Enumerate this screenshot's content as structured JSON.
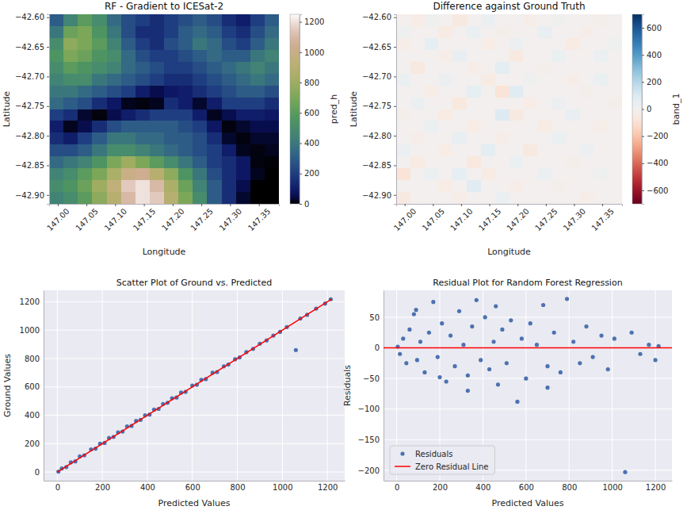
{
  "chart_data": [
    {
      "type": "heatmap",
      "title": "RF - Gradient to ICESat-2",
      "xlabel": "Longitude",
      "ylabel": "Latitude",
      "x": [
        146.9975,
        147.0225,
        147.0475,
        147.0725,
        147.0975,
        147.1225,
        147.1475,
        147.1725,
        147.1975,
        147.2225,
        147.2475,
        147.2725,
        147.2975,
        147.3225,
        147.3475,
        147.3725
      ],
      "y": [
        -42.605,
        -42.625,
        -42.645,
        -42.665,
        -42.685,
        -42.705,
        -42.725,
        -42.745,
        -42.765,
        -42.785,
        -42.805,
        -42.825,
        -42.845,
        -42.865,
        -42.885,
        -42.905
      ],
      "values": [
        [
          300,
          450,
          600,
          500,
          350,
          250,
          200,
          150,
          200,
          250,
          300,
          250,
          150,
          100,
          200,
          300
        ],
        [
          400,
          650,
          700,
          550,
          400,
          250,
          150,
          150,
          200,
          300,
          350,
          300,
          200,
          150,
          250,
          350
        ],
        [
          500,
          750,
          700,
          600,
          450,
          300,
          200,
          150,
          250,
          300,
          400,
          350,
          250,
          200,
          300,
          400
        ],
        [
          550,
          700,
          650,
          550,
          500,
          350,
          250,
          200,
          200,
          250,
          300,
          350,
          300,
          300,
          400,
          450
        ],
        [
          500,
          600,
          550,
          500,
          450,
          350,
          300,
          250,
          200,
          200,
          250,
          300,
          350,
          400,
          450,
          400
        ],
        [
          450,
          500,
          500,
          400,
          350,
          300,
          250,
          200,
          150,
          150,
          200,
          250,
          300,
          350,
          400,
          350
        ],
        [
          400,
          400,
          350,
          300,
          250,
          200,
          100,
          50,
          80,
          100,
          150,
          200,
          250,
          300,
          300,
          250
        ],
        [
          350,
          300,
          250,
          150,
          80,
          20,
          10,
          20,
          150,
          100,
          30,
          100,
          200,
          200,
          200,
          150
        ],
        [
          200,
          150,
          30,
          10,
          50,
          100,
          150,
          200,
          200,
          200,
          100,
          20,
          50,
          100,
          100,
          80
        ],
        [
          100,
          20,
          50,
          150,
          250,
          300,
          300,
          300,
          300,
          250,
          200,
          80,
          10,
          30,
          50,
          50
        ],
        [
          150,
          100,
          200,
          300,
          400,
          400,
          350,
          350,
          300,
          300,
          250,
          150,
          30,
          10,
          30,
          30
        ],
        [
          250,
          250,
          300,
          400,
          500,
          500,
          450,
          400,
          350,
          300,
          250,
          200,
          100,
          20,
          10,
          20
        ],
        [
          350,
          400,
          450,
          550,
          700,
          800,
          700,
          600,
          500,
          400,
          300,
          200,
          150,
          80,
          10,
          5
        ],
        [
          450,
          500,
          600,
          700,
          850,
          1000,
          1050,
          900,
          750,
          550,
          400,
          250,
          150,
          80,
          20,
          0
        ],
        [
          500,
          550,
          650,
          800,
          950,
          1150,
          1200,
          1100,
          850,
          650,
          450,
          300,
          150,
          50,
          0,
          0
        ],
        [
          450,
          500,
          600,
          750,
          900,
          1100,
          1200,
          1150,
          900,
          700,
          500,
          300,
          150,
          30,
          0,
          0
        ]
      ],
      "xlim": [
        146.985,
        147.385
      ],
      "ylim": [
        -42.915,
        -42.595
      ],
      "xticks": [
        {
          "value": 147,
          "label": "147.00"
        },
        {
          "value": 147.05,
          "label": "147.05"
        },
        {
          "value": 147.1,
          "label": "147.10"
        },
        {
          "value": 147.15,
          "label": "147.15"
        },
        {
          "value": 147.2,
          "label": "147.20"
        },
        {
          "value": 147.25,
          "label": "147.25"
        },
        {
          "value": 147.3,
          "label": "147.30"
        },
        {
          "value": 147.35,
          "label": "147.35"
        }
      ],
      "yticks": [
        {
          "value": -42.6,
          "label": "−42.60"
        },
        {
          "value": -42.65,
          "label": "−42.65"
        },
        {
          "value": -42.7,
          "label": "−42.70"
        },
        {
          "value": -42.75,
          "label": "−42.75"
        },
        {
          "value": -42.8,
          "label": "−42.80"
        },
        {
          "value": -42.85,
          "label": "−42.85"
        },
        {
          "value": -42.9,
          "label": "−42.90"
        }
      ],
      "grid": false,
      "colorbar": {
        "label": "pred_h",
        "range": [
          0,
          1250
        ],
        "ticks": [
          0,
          200,
          400,
          600,
          800,
          1000,
          1200
        ]
      }
    },
    {
      "type": "heatmap",
      "title": "Difference against Ground Truth",
      "xlabel": "Longitude",
      "ylabel": "Latitude",
      "x": [
        146.9975,
        147.0225,
        147.0475,
        147.0725,
        147.0975,
        147.1225,
        147.1475,
        147.1725,
        147.1975,
        147.2225,
        147.2475,
        147.2725,
        147.2975,
        147.3225,
        147.3475,
        147.3725
      ],
      "y": [
        -42.605,
        -42.625,
        -42.645,
        -42.665,
        -42.685,
        -42.705,
        -42.725,
        -42.745,
        -42.765,
        -42.785,
        -42.805,
        -42.825,
        -42.845,
        -42.865,
        -42.885,
        -42.905
      ],
      "values": [
        [
          0,
          -40,
          20,
          0,
          -60,
          0,
          30,
          0,
          0,
          -30,
          0,
          20,
          0,
          0,
          -20,
          0
        ],
        [
          20,
          0,
          0,
          -50,
          0,
          40,
          0,
          -20,
          0,
          0,
          50,
          0,
          0,
          -30,
          0,
          0
        ],
        [
          -30,
          0,
          60,
          0,
          0,
          0,
          -40,
          0,
          30,
          0,
          0,
          0,
          -50,
          0,
          0,
          20
        ],
        [
          0,
          0,
          0,
          -30,
          50,
          0,
          0,
          0,
          -60,
          0,
          0,
          40,
          0,
          0,
          30,
          0
        ],
        [
          0,
          -60,
          0,
          0,
          0,
          -30,
          0,
          70,
          0,
          0,
          -20,
          0,
          0,
          0,
          0,
          0
        ],
        [
          40,
          0,
          0,
          30,
          0,
          0,
          -50,
          0,
          0,
          20,
          0,
          0,
          -30,
          0,
          40,
          0
        ],
        [
          0,
          0,
          -40,
          0,
          0,
          60,
          0,
          -90,
          80,
          0,
          0,
          0,
          0,
          -20,
          0,
          0
        ],
        [
          0,
          30,
          0,
          0,
          -70,
          0,
          0,
          0,
          0,
          -40,
          0,
          30,
          0,
          0,
          0,
          -20
        ],
        [
          -20,
          0,
          0,
          -50,
          0,
          0,
          0,
          90,
          -60,
          0,
          0,
          0,
          50,
          0,
          0,
          0
        ],
        [
          0,
          0,
          40,
          0,
          0,
          -40,
          0,
          0,
          0,
          0,
          -50,
          0,
          0,
          0,
          -30,
          0
        ],
        [
          0,
          -30,
          0,
          0,
          50,
          0,
          0,
          -30,
          0,
          0,
          0,
          40,
          0,
          0,
          0,
          0
        ],
        [
          30,
          0,
          0,
          -40,
          0,
          0,
          70,
          0,
          0,
          -60,
          0,
          0,
          0,
          30,
          0,
          0
        ],
        [
          0,
          -50,
          0,
          0,
          0,
          -70,
          0,
          0,
          40,
          0,
          0,
          0,
          -20,
          0,
          0,
          0
        ],
        [
          -90,
          0,
          30,
          0,
          60,
          0,
          -50,
          0,
          0,
          0,
          30,
          0,
          0,
          0,
          20,
          0
        ],
        [
          0,
          0,
          0,
          -40,
          0,
          80,
          0,
          0,
          -30,
          0,
          0,
          -20,
          0,
          0,
          0,
          0
        ],
        [
          -60,
          0,
          0,
          0,
          -30,
          0,
          0,
          30,
          0,
          0,
          0,
          0,
          0,
          -30,
          0,
          0
        ]
      ],
      "xlim": [
        146.985,
        147.385
      ],
      "ylim": [
        -42.915,
        -42.595
      ],
      "xticks": [
        {
          "value": 147,
          "label": "147.00"
        },
        {
          "value": 147.05,
          "label": "147.05"
        },
        {
          "value": 147.1,
          "label": "147.10"
        },
        {
          "value": 147.15,
          "label": "147.15"
        },
        {
          "value": 147.2,
          "label": "147.20"
        },
        {
          "value": 147.25,
          "label": "147.25"
        },
        {
          "value": 147.3,
          "label": "147.30"
        },
        {
          "value": 147.35,
          "label": "147.35"
        }
      ],
      "yticks": [
        {
          "value": -42.6,
          "label": "−42.60"
        },
        {
          "value": -42.65,
          "label": "−42.65"
        },
        {
          "value": -42.7,
          "label": "−42.70"
        },
        {
          "value": -42.75,
          "label": "−42.75"
        },
        {
          "value": -42.8,
          "label": "−42.80"
        },
        {
          "value": -42.85,
          "label": "−42.85"
        },
        {
          "value": -42.9,
          "label": "−42.90"
        }
      ],
      "grid": false,
      "colorbar": {
        "label": "band_1",
        "range": [
          -700,
          700
        ],
        "ticks": [
          {
            "value": -600,
            "label": "−600"
          },
          {
            "value": -400,
            "label": "−400"
          },
          {
            "value": -200,
            "label": "−200"
          },
          0,
          200,
          400,
          600
        ]
      }
    },
    {
      "type": "scatter",
      "title": "Scatter Plot of Ground vs. Predicted",
      "xlabel": "Predicted Values",
      "ylabel": "Ground Values",
      "series": [
        {
          "type": "scatter",
          "marker": "circle",
          "color": "#4c72b0",
          "x": [
            5,
            20,
            40,
            60,
            80,
            100,
            120,
            150,
            170,
            190,
            210,
            230,
            250,
            270,
            290,
            310,
            330,
            350,
            370,
            390,
            410,
            430,
            450,
            470,
            490,
            510,
            530,
            550,
            570,
            600,
            620,
            640,
            660,
            690,
            710,
            740,
            760,
            790,
            810,
            840,
            870,
            900,
            930,
            960,
            990,
            1020,
            1060,
            1080,
            1110,
            1150,
            1190,
            1215
          ],
          "values": [
            3,
            25,
            35,
            68,
            75,
            110,
            118,
            160,
            165,
            200,
            205,
            240,
            248,
            280,
            285,
            322,
            325,
            360,
            368,
            400,
            405,
            440,
            445,
            480,
            488,
            520,
            525,
            560,
            565,
            610,
            615,
            650,
            655,
            700,
            705,
            745,
            758,
            795,
            808,
            845,
            868,
            905,
            928,
            962,
            988,
            1022,
            860,
            1082,
            1108,
            1152,
            1188,
            1218
          ]
        },
        {
          "type": "line",
          "line_style": "solid",
          "color": "red",
          "x": [
            0,
            1220
          ],
          "values": [
            0,
            1220
          ]
        }
      ],
      "xlim": [
        -61,
        1277
      ],
      "ylim": [
        -61,
        1281
      ],
      "xticks": [
        0,
        200,
        400,
        600,
        800,
        1000,
        1200
      ],
      "yticks": [
        0,
        200,
        400,
        600,
        800,
        1000,
        1200
      ],
      "grid": true
    },
    {
      "type": "scatter",
      "title": "Residual Plot for Random Forest Regression",
      "xlabel": "Predicted Values",
      "ylabel": "Residuals",
      "series": [
        {
          "name": "Residuals",
          "type": "scatter",
          "marker": "circle",
          "color": "#4c72b0",
          "x": [
            5,
            15,
            30,
            45,
            60,
            80,
            95,
            110,
            130,
            150,
            170,
            190,
            210,
            230,
            250,
            270,
            290,
            310,
            330,
            350,
            370,
            390,
            410,
            430,
            450,
            470,
            490,
            510,
            530,
            560,
            580,
            600,
            620,
            650,
            680,
            700,
            730,
            760,
            790,
            820,
            850,
            880,
            910,
            950,
            980,
            1010,
            1060,
            1090,
            1130,
            1170,
            1200,
            1215,
            90,
            200,
            330,
            460,
            700
          ],
          "values": [
            2,
            -10,
            15,
            -25,
            30,
            55,
            -20,
            10,
            -40,
            25,
            75,
            -15,
            40,
            -55,
            20,
            -30,
            60,
            5,
            -45,
            35,
            78,
            -20,
            50,
            -35,
            10,
            -60,
            30,
            -25,
            45,
            -88,
            15,
            -50,
            40,
            5,
            70,
            -30,
            25,
            -40,
            80,
            10,
            -25,
            35,
            -15,
            20,
            -35,
            15,
            -203,
            25,
            -10,
            5,
            -20,
            3,
            62,
            -48,
            -70,
            68,
            -65
          ]
        },
        {
          "name": "Zero Residual Line",
          "type": "line",
          "line_style": "solid",
          "color": "red",
          "x": [
            -61,
            1277
          ],
          "values": [
            0,
            0
          ]
        }
      ],
      "xlim": [
        -61,
        1277
      ],
      "ylim": [
        -217,
        94
      ],
      "xticks": [
        0,
        200,
        400,
        600,
        800,
        1000,
        1200
      ],
      "yticks": [
        {
          "value": -200,
          "label": "−200"
        },
        {
          "value": -150,
          "label": "−150"
        },
        {
          "value": -100,
          "label": "−100"
        },
        {
          "value": -50,
          "label": "−50"
        },
        0,
        50
      ],
      "grid": true,
      "legend": "lower left"
    }
  ]
}
